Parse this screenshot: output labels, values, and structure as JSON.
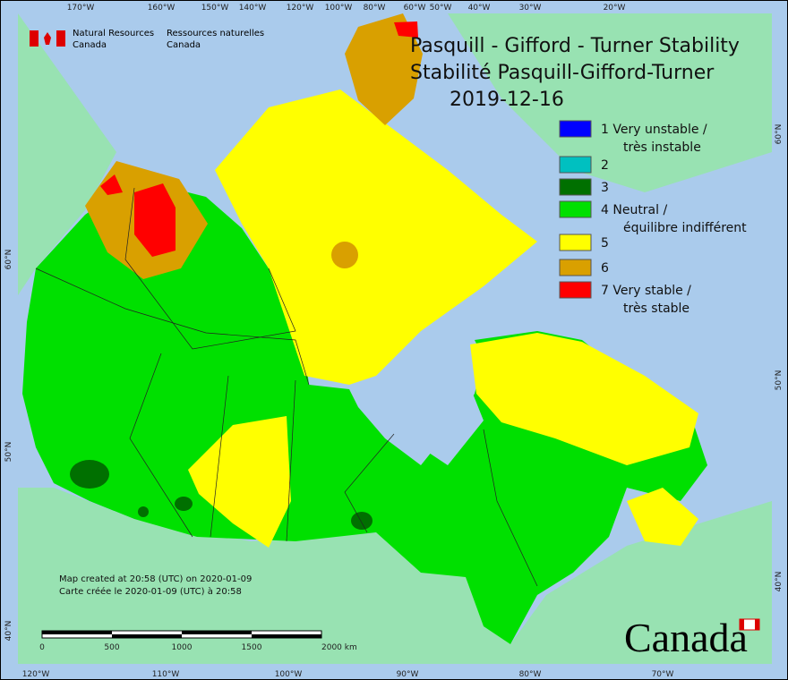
{
  "logo": {
    "en": [
      "Natural Resources",
      "Canada"
    ],
    "fr": [
      "Ressources naturelles",
      "Canada"
    ]
  },
  "title": [
    "Pasquill - Gifford - Turner Stability",
    "Stabilité Pasquill-Gifford-Turner",
    "2019-12-16"
  ],
  "legend": [
    {
      "color": "#0000ff",
      "lines": [
        "1 Very unstable /",
        "très instable"
      ]
    },
    {
      "color": "#00c0c0",
      "lines": [
        "2"
      ]
    },
    {
      "color": "#007000",
      "lines": [
        "3"
      ]
    },
    {
      "color": "#00e000",
      "lines": [
        "4 Neutral /",
        "équilibre indifférent"
      ]
    },
    {
      "color": "#ffff00",
      "lines": [
        "5"
      ]
    },
    {
      "color": "#d9a000",
      "lines": [
        "6"
      ]
    },
    {
      "color": "#ff0000",
      "lines": [
        "7 Very stable /",
        "très stable"
      ]
    }
  ],
  "top_labels": [
    "170°W",
    "160°W",
    "150°W",
    "140°W",
    "120°W",
    "100°W",
    "80°W",
    "60°W",
    "50°W",
    "40°W",
    "30°W",
    "20°W"
  ],
  "bottom_labels": [
    "120°W",
    "110°W",
    "100°W",
    "90°W",
    "80°W",
    "70°W"
  ],
  "left_labels": [
    "60°N",
    "50°N",
    "40°N"
  ],
  "right_labels": [
    "60°N",
    "50°N",
    "40°N"
  ],
  "notes": [
    "Map created at 20:58 (UTC) on 2020-01-09",
    "Carte créée le 2020-01-09 (UTC) à 20:58"
  ],
  "scale": [
    "0",
    "500",
    "1000",
    "1500",
    "2000 km"
  ],
  "wordmark": "Canada"
}
